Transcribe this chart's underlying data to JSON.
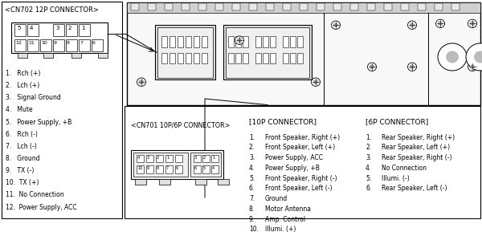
{
  "cn702_title": "<CN702 12P CONNECTOR>",
  "cn702_items": [
    "1.   Rch (+)",
    "2.   Lch (+)",
    "3.   Signal Ground",
    "4.   Mute",
    "5.   Power Supply, +B",
    "6.   Rch (-)",
    "7.   Lch (-)",
    "8.   Ground",
    "9.   TX (-)",
    "10.  TX (+)",
    "11.  No Connection",
    "12.  Power Supply, ACC"
  ],
  "cn701_title": "<CN701 10P/6P CONNECTOR>",
  "conn10_title": "[10P CONNECTOR]",
  "conn10_items": [
    "Front Speaker, Right (+)",
    "Front Speaker, Left (+)",
    "Power Supply, ACC",
    "Power Supply, +B",
    "Front Speaker, Right (-)",
    "Front Speaker, Left (-)",
    "Ground",
    "Motor Antenna",
    "Amp. Control",
    "Illumi. (+)"
  ],
  "conn6_title": "[6P CONNECTOR]",
  "conn6_items": [
    "Rear Speaker, Right (+)",
    "Rear Speaker, Left (+)",
    "Rear Speaker, Right (-)",
    "No Connection",
    "Illumi. (-)",
    "Rear Speaker, Left (-)"
  ]
}
